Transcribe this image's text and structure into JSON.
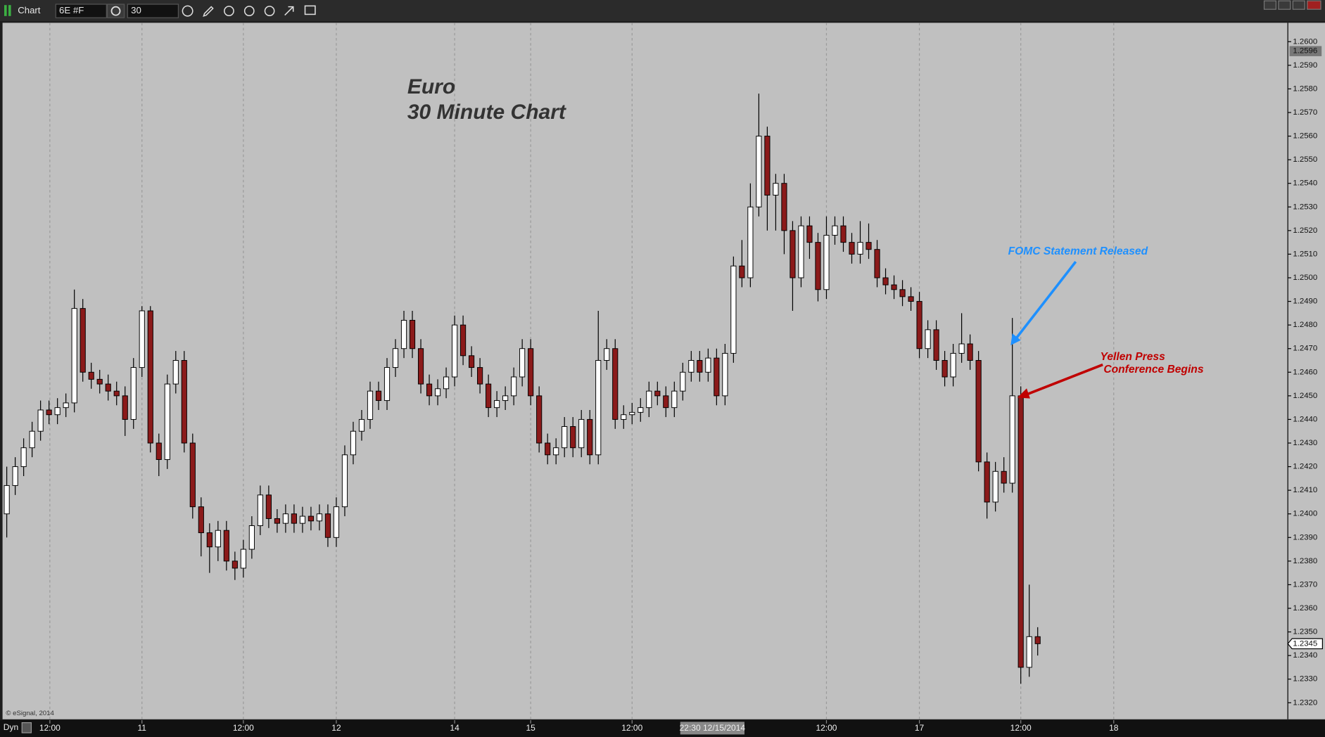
{
  "toolbar": {
    "title": "Chart",
    "symbol": "6E #F",
    "interval": "30"
  },
  "footer": {
    "mode": "Dyn"
  },
  "chart_data": {
    "type": "candlestick",
    "title": "Euro",
    "subtitle": "30 Minute Chart",
    "watermark": "© eSignal, 2014",
    "annotations": [
      "FOMC Statement Released",
      "Yellen Press",
      "Conference Begins"
    ],
    "up_color": "#ffffff",
    "down_color": "#8b1a1a",
    "grid": "x",
    "xlim": [
      0,
      152.1
    ],
    "ylim": [
      1.2313,
      1.2608
    ],
    "xticks": [
      {
        "value": 5.6,
        "label": "12:00"
      },
      {
        "value": 16.5,
        "label": "11"
      },
      {
        "value": 28.5,
        "label": "12:00"
      },
      {
        "value": 39.5,
        "label": "12"
      },
      {
        "value": 53.5,
        "label": "14"
      },
      {
        "value": 62.5,
        "label": "15"
      },
      {
        "value": 74.5,
        "label": "12:00"
      },
      {
        "value": 97.5,
        "label": "12:00"
      },
      {
        "value": 108.5,
        "label": "17"
      },
      {
        "value": 120.5,
        "label": "12:00"
      },
      {
        "value": 131.5,
        "label": "18"
      }
    ],
    "yticks": [
      {
        "value": 1.232,
        "label": "1.2320"
      },
      {
        "value": 1.233,
        "label": "1.2330"
      },
      {
        "value": 1.234,
        "label": "1.2340"
      },
      {
        "value": 1.235,
        "label": "1.2350"
      },
      {
        "value": 1.236,
        "label": "1.2360"
      },
      {
        "value": 1.237,
        "label": "1.2370"
      },
      {
        "value": 1.238,
        "label": "1.2380"
      },
      {
        "value": 1.239,
        "label": "1.2390"
      },
      {
        "value": 1.24,
        "label": "1.2400"
      },
      {
        "value": 1.241,
        "label": "1.2410"
      },
      {
        "value": 1.242,
        "label": "1.2420"
      },
      {
        "value": 1.243,
        "label": "1.2430"
      },
      {
        "value": 1.244,
        "label": "1.2440"
      },
      {
        "value": 1.245,
        "label": "1.2450"
      },
      {
        "value": 1.246,
        "label": "1.2460"
      },
      {
        "value": 1.247,
        "label": "1.2470"
      },
      {
        "value": 1.248,
        "label": "1.2480"
      },
      {
        "value": 1.249,
        "label": "1.2490"
      },
      {
        "value": 1.25,
        "label": "1.2500"
      },
      {
        "value": 1.251,
        "label": "1.2510"
      },
      {
        "value": 1.252,
        "label": "1.2520"
      },
      {
        "value": 1.253,
        "label": "1.2530"
      },
      {
        "value": 1.254,
        "label": "1.2540"
      },
      {
        "value": 1.255,
        "label": "1.2550"
      },
      {
        "value": 1.256,
        "label": "1.2560"
      },
      {
        "value": 1.257,
        "label": "1.2570"
      },
      {
        "value": 1.258,
        "label": "1.2580"
      },
      {
        "value": 1.259,
        "label": "1.2590"
      },
      {
        "value": 1.26,
        "label": "1.2600"
      }
    ],
    "crosshair": {
      "x": {
        "value": 84,
        "label": "22:30 12/15/2014"
      },
      "y": 1.2596
    },
    "last_price": 1.2345,
    "x": [
      0.5,
      1.5,
      2.5,
      3.5,
      4.5,
      5.5,
      6.5,
      7.5,
      8.5,
      9.5,
      10.5,
      11.5,
      12.5,
      13.5,
      14.5,
      15.5,
      16.5,
      17.5,
      18.5,
      19.5,
      20.5,
      21.5,
      22.5,
      23.5,
      24.5,
      25.5,
      26.5,
      27.5,
      28.5,
      29.5,
      30.5,
      31.5,
      32.5,
      33.5,
      34.5,
      35.5,
      36.5,
      37.5,
      38.5,
      39.5,
      40.5,
      41.5,
      42.5,
      43.5,
      44.5,
      45.5,
      46.5,
      47.5,
      48.5,
      49.5,
      50.5,
      51.5,
      52.5,
      53.5,
      54.5,
      55.5,
      56.5,
      57.5,
      58.5,
      59.5,
      60.5,
      61.5,
      62.5,
      63.5,
      64.5,
      65.5,
      66.5,
      67.5,
      68.5,
      69.5,
      70.5,
      71.5,
      72.5,
      73.5,
      74.5,
      75.5,
      76.5,
      77.5,
      78.5,
      79.5,
      80.5,
      81.5,
      82.5,
      83.5,
      84.5,
      85.5,
      86.5,
      87.5,
      88.5,
      89.5,
      90.5,
      91.5,
      92.5,
      93.5,
      94.5,
      95.5,
      96.5,
      97.5,
      98.5,
      99.5,
      100.5,
      101.5,
      102.5,
      103.5,
      104.5,
      105.5,
      106.5,
      107.5,
      108.5,
      109.5,
      110.5,
      111.5,
      112.5,
      113.5,
      114.5,
      115.5,
      116.5,
      117.5,
      118.5,
      119.5,
      120.5,
      121.5,
      122.5
    ],
    "open": [
      1.24,
      1.2412,
      1.242,
      1.2428,
      1.2435,
      1.2444,
      1.2442,
      1.2445,
      1.2447,
      1.2487,
      1.246,
      1.2457,
      1.2455,
      1.2452,
      1.245,
      1.244,
      1.2462,
      1.2486,
      1.243,
      1.2423,
      1.2455,
      1.2465,
      1.243,
      1.2403,
      1.2392,
      1.2386,
      1.2393,
      1.238,
      1.2377,
      1.2385,
      1.2395,
      1.2408,
      1.2398,
      1.2396,
      1.24,
      1.2396,
      1.2399,
      1.2397,
      1.24,
      1.239,
      1.2403,
      1.2425,
      1.2435,
      1.244,
      1.2452,
      1.2448,
      1.2462,
      1.247,
      1.2482,
      1.247,
      1.2455,
      1.245,
      1.2453,
      1.2458,
      1.248,
      1.2467,
      1.2462,
      1.2455,
      1.2445,
      1.2448,
      1.245,
      1.2458,
      1.247,
      1.245,
      1.243,
      1.2425,
      1.2428,
      1.2437,
      1.2428,
      1.244,
      1.2425,
      1.2465,
      1.247,
      1.244,
      1.2442,
      1.2443,
      1.2445,
      1.2452,
      1.245,
      1.2445,
      1.2452,
      1.246,
      1.2465,
      1.246,
      1.2466,
      1.245,
      1.2468,
      1.2505,
      1.25,
      1.253,
      1.256,
      1.2535,
      1.254,
      1.252,
      1.25,
      1.2522,
      1.2515,
      1.2495,
      1.2518,
      1.2522,
      1.2515,
      1.251,
      1.2515,
      1.2512,
      1.25,
      1.2497,
      1.2495,
      1.2492,
      1.249,
      1.247,
      1.2478,
      1.2465,
      1.2458,
      1.2468,
      1.2472,
      1.2465,
      1.2422,
      1.2405,
      1.2418,
      1.2413,
      1.245,
      1.2335,
      1.2348
    ],
    "high": [
      1.242,
      1.2424,
      1.2432,
      1.2439,
      1.2448,
      1.2448,
      1.2449,
      1.2451,
      1.2495,
      1.2491,
      1.2464,
      1.2461,
      1.2459,
      1.2456,
      1.2454,
      1.2466,
      1.2488,
      1.2488,
      1.2434,
      1.2459,
      1.2469,
      1.2469,
      1.2434,
      1.2407,
      1.2396,
      1.2397,
      1.2397,
      1.2384,
      1.2389,
      1.2399,
      1.2412,
      1.2412,
      1.2402,
      1.2404,
      1.2404,
      1.2403,
      1.2403,
      1.2404,
      1.2404,
      1.2407,
      1.2429,
      1.2439,
      1.2444,
      1.2456,
      1.2456,
      1.2466,
      1.2474,
      1.2486,
      1.2486,
      1.2474,
      1.2459,
      1.2457,
      1.2462,
      1.2484,
      1.2484,
      1.2471,
      1.2466,
      1.2459,
      1.2452,
      1.2454,
      1.2462,
      1.2474,
      1.2474,
      1.2454,
      1.2434,
      1.2432,
      1.2441,
      1.2441,
      1.2444,
      1.2444,
      1.2486,
      1.2474,
      1.2474,
      1.2446,
      1.2447,
      1.2449,
      1.2456,
      1.2456,
      1.2454,
      1.2456,
      1.2464,
      1.2469,
      1.2469,
      1.247,
      1.247,
      1.2472,
      1.2509,
      1.2516,
      1.254,
      1.2578,
      1.2564,
      1.2544,
      1.2544,
      1.2524,
      1.2526,
      1.2526,
      1.2519,
      1.2526,
      1.2526,
      1.2526,
      1.2519,
      1.2524,
      1.2523,
      1.2516,
      1.2504,
      1.2501,
      1.2499,
      1.2496,
      1.2494,
      1.2482,
      1.2482,
      1.2469,
      1.2472,
      1.2485,
      1.2476,
      1.2469,
      1.2426,
      1.2422,
      1.2424,
      1.2483,
      1.2454,
      1.237,
      1.2352
    ],
    "low": [
      1.239,
      1.2408,
      1.2416,
      1.2424,
      1.2431,
      1.2438,
      1.2438,
      1.2441,
      1.2443,
      1.2456,
      1.2453,
      1.2451,
      1.2448,
      1.2446,
      1.2433,
      1.2436,
      1.2458,
      1.2426,
      1.2416,
      1.2419,
      1.2451,
      1.2426,
      1.2398,
      1.2382,
      1.2375,
      1.238,
      1.2376,
      1.2372,
      1.2373,
      1.2381,
      1.2391,
      1.2394,
      1.2392,
      1.2392,
      1.2392,
      1.2392,
      1.2393,
      1.2393,
      1.2386,
      1.2386,
      1.2399,
      1.2421,
      1.2431,
      1.2436,
      1.2444,
      1.2444,
      1.2458,
      1.2466,
      1.2466,
      1.2451,
      1.2446,
      1.2446,
      1.2449,
      1.2454,
      1.2463,
      1.2458,
      1.2451,
      1.2441,
      1.2441,
      1.2444,
      1.2446,
      1.2454,
      1.2446,
      1.2426,
      1.2421,
      1.2421,
      1.2424,
      1.2424,
      1.2424,
      1.2421,
      1.2421,
      1.2461,
      1.2436,
      1.2436,
      1.2438,
      1.2439,
      1.2441,
      1.2446,
      1.2441,
      1.2441,
      1.2448,
      1.2456,
      1.2456,
      1.2456,
      1.2446,
      1.2446,
      1.2464,
      1.2496,
      1.2496,
      1.2526,
      1.252,
      1.252,
      1.251,
      1.2486,
      1.2496,
      1.2508,
      1.249,
      1.2491,
      1.2514,
      1.2511,
      1.2506,
      1.2506,
      1.2508,
      1.2496,
      1.2493,
      1.2491,
      1.2488,
      1.2486,
      1.2466,
      1.2466,
      1.2461,
      1.2454,
      1.2454,
      1.2464,
      1.2461,
      1.2418,
      1.2398,
      1.2401,
      1.2409,
      1.2409,
      1.2328,
      1.2331,
      1.234
    ],
    "close": [
      1.2412,
      1.242,
      1.2428,
      1.2435,
      1.2444,
      1.2442,
      1.2445,
      1.2447,
      1.2487,
      1.246,
      1.2457,
      1.2455,
      1.2452,
      1.245,
      1.244,
      1.2462,
      1.2486,
      1.243,
      1.2423,
      1.2455,
      1.2465,
      1.243,
      1.2403,
      1.2392,
      1.2386,
      1.2393,
      1.238,
      1.2377,
      1.2385,
      1.2395,
      1.2408,
      1.2398,
      1.2396,
      1.24,
      1.2396,
      1.2399,
      1.2397,
      1.24,
      1.239,
      1.2403,
      1.2425,
      1.2435,
      1.244,
      1.2452,
      1.2448,
      1.2462,
      1.247,
      1.2482,
      1.247,
      1.2455,
      1.245,
      1.2453,
      1.2458,
      1.248,
      1.2467,
      1.2462,
      1.2455,
      1.2445,
      1.2448,
      1.245,
      1.2458,
      1.247,
      1.245,
      1.243,
      1.2425,
      1.2428,
      1.2437,
      1.2428,
      1.244,
      1.2425,
      1.2465,
      1.247,
      1.244,
      1.2442,
      1.2443,
      1.2445,
      1.2452,
      1.245,
      1.2445,
      1.2452,
      1.246,
      1.2465,
      1.246,
      1.2466,
      1.245,
      1.2468,
      1.2505,
      1.25,
      1.253,
      1.256,
      1.2535,
      1.254,
      1.252,
      1.25,
      1.2522,
      1.2515,
      1.2495,
      1.2518,
      1.2522,
      1.2515,
      1.251,
      1.2515,
      1.2512,
      1.25,
      1.2497,
      1.2495,
      1.2492,
      1.249,
      1.247,
      1.2478,
      1.2465,
      1.2458,
      1.2468,
      1.2472,
      1.2465,
      1.2422,
      1.2405,
      1.2418,
      1.2413,
      1.245,
      1.2335,
      1.2348,
      1.2345
    ]
  }
}
